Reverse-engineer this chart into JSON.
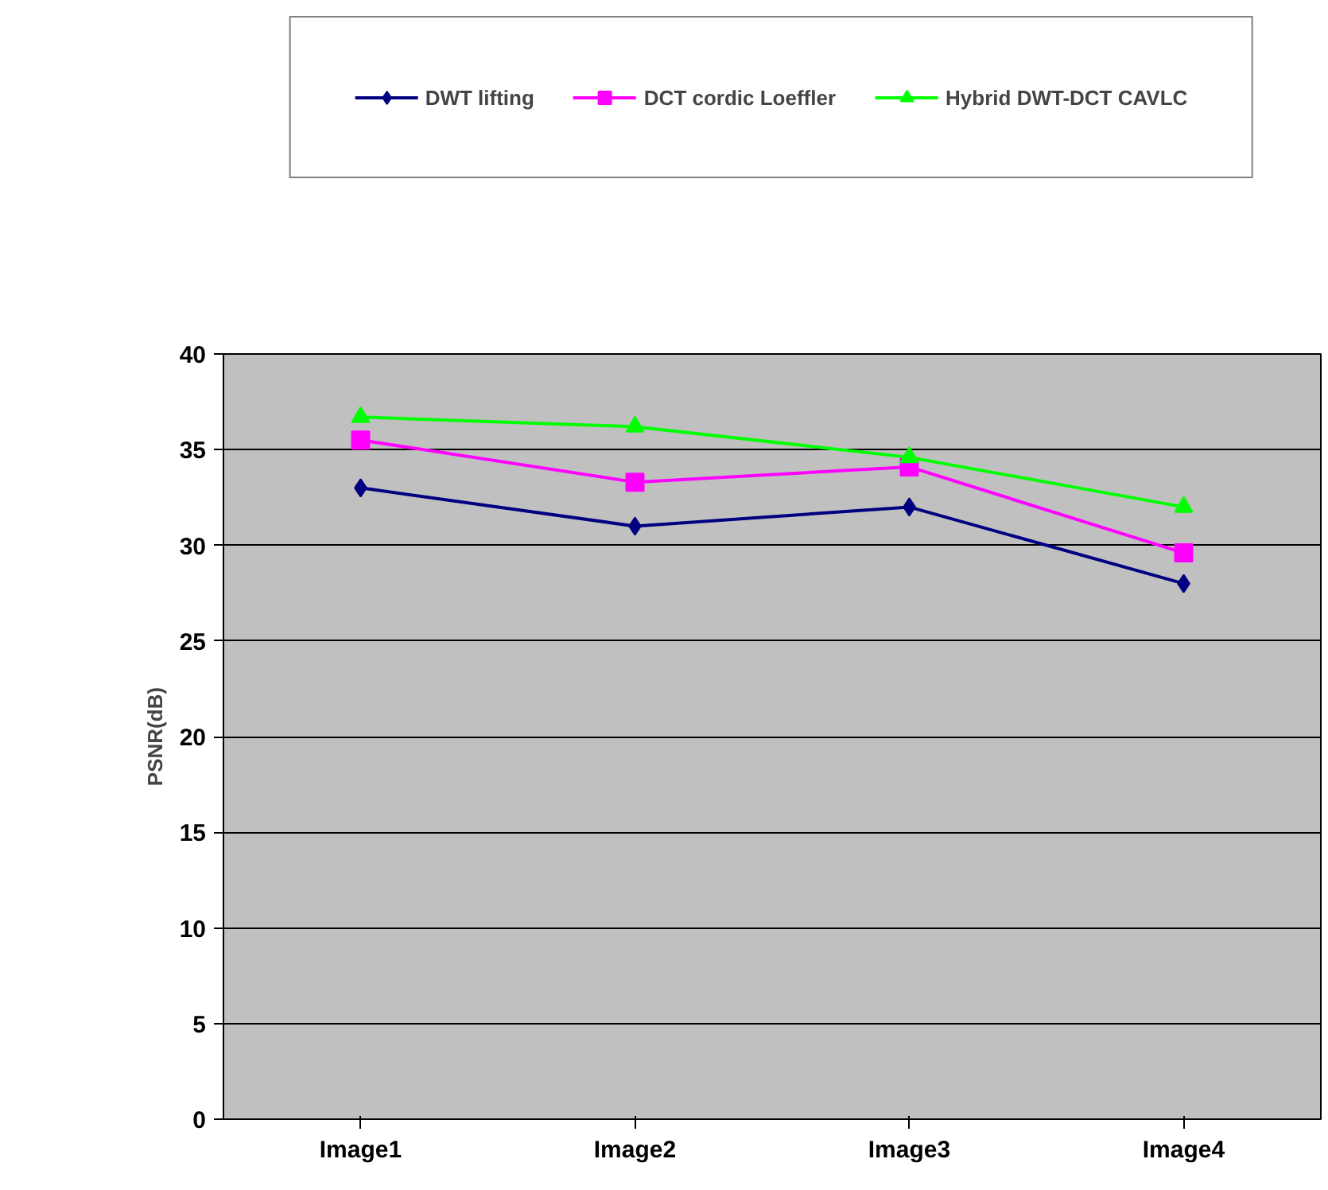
{
  "chart_data": {
    "type": "line",
    "ylabel": "PSNR(dB)",
    "categories": [
      "Image1",
      "Image2",
      "Image3",
      "Image4"
    ],
    "series": [
      {
        "name": "DWT lifting",
        "color": "#000080",
        "marker": "diamond",
        "values": [
          33,
          31,
          32,
          28
        ]
      },
      {
        "name": "DCT cordic Loeffler",
        "color": "#ff00ff",
        "marker": "square",
        "values": [
          35.5,
          33.3,
          34.1,
          29.6
        ]
      },
      {
        "name": "Hybrid DWT-DCT CAVLC",
        "color": "#00ff00",
        "marker": "triangle",
        "values": [
          36.7,
          36.2,
          34.6,
          32
        ]
      }
    ],
    "ylim": [
      0,
      40
    ],
    "yticks": [
      0,
      5,
      10,
      15,
      20,
      25,
      30,
      35,
      40
    ],
    "grid": "y",
    "legend": "top",
    "line_style": "solid"
  }
}
